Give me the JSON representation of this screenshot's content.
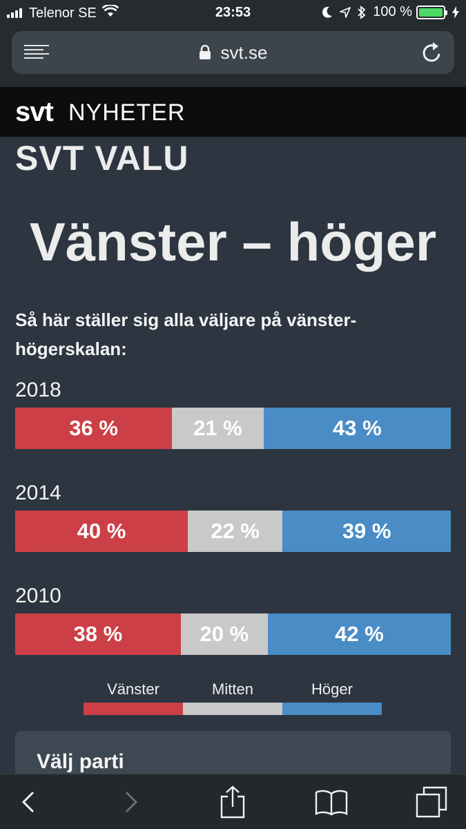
{
  "status_bar": {
    "carrier": "Telenor SE",
    "time": "23:53",
    "battery": "100 %"
  },
  "browser": {
    "url": "svt.se"
  },
  "site": {
    "logo": "svt",
    "section": "NYHETER"
  },
  "page": {
    "section_title": "SVT VALU",
    "headline": "Vänster – höger",
    "intro": "Så här ställer sig alla väljare på vänster-högerskalan:"
  },
  "chart_data": {
    "type": "bar",
    "stacked": true,
    "orientation": "horizontal",
    "categories": [
      "2018",
      "2014",
      "2010"
    ],
    "series": [
      {
        "name": "Vänster",
        "color": "#cc3f46",
        "values": [
          36,
          40,
          38
        ],
        "labels": [
          "36 %",
          "40 %",
          "38 %"
        ]
      },
      {
        "name": "Mitten",
        "color": "#c9c9c9",
        "values": [
          21,
          22,
          20
        ],
        "labels": [
          "21 %",
          "22 %",
          "20 %"
        ]
      },
      {
        "name": "Höger",
        "color": "#4a8cc5",
        "values": [
          43,
          39,
          42
        ],
        "labels": [
          "43 %",
          "39 %",
          "42 %"
        ]
      }
    ],
    "unit": "%"
  },
  "legend": {
    "left": "Vänster",
    "mid": "Mitten",
    "right": "Höger"
  },
  "party_card": {
    "title": "Välj parti"
  }
}
